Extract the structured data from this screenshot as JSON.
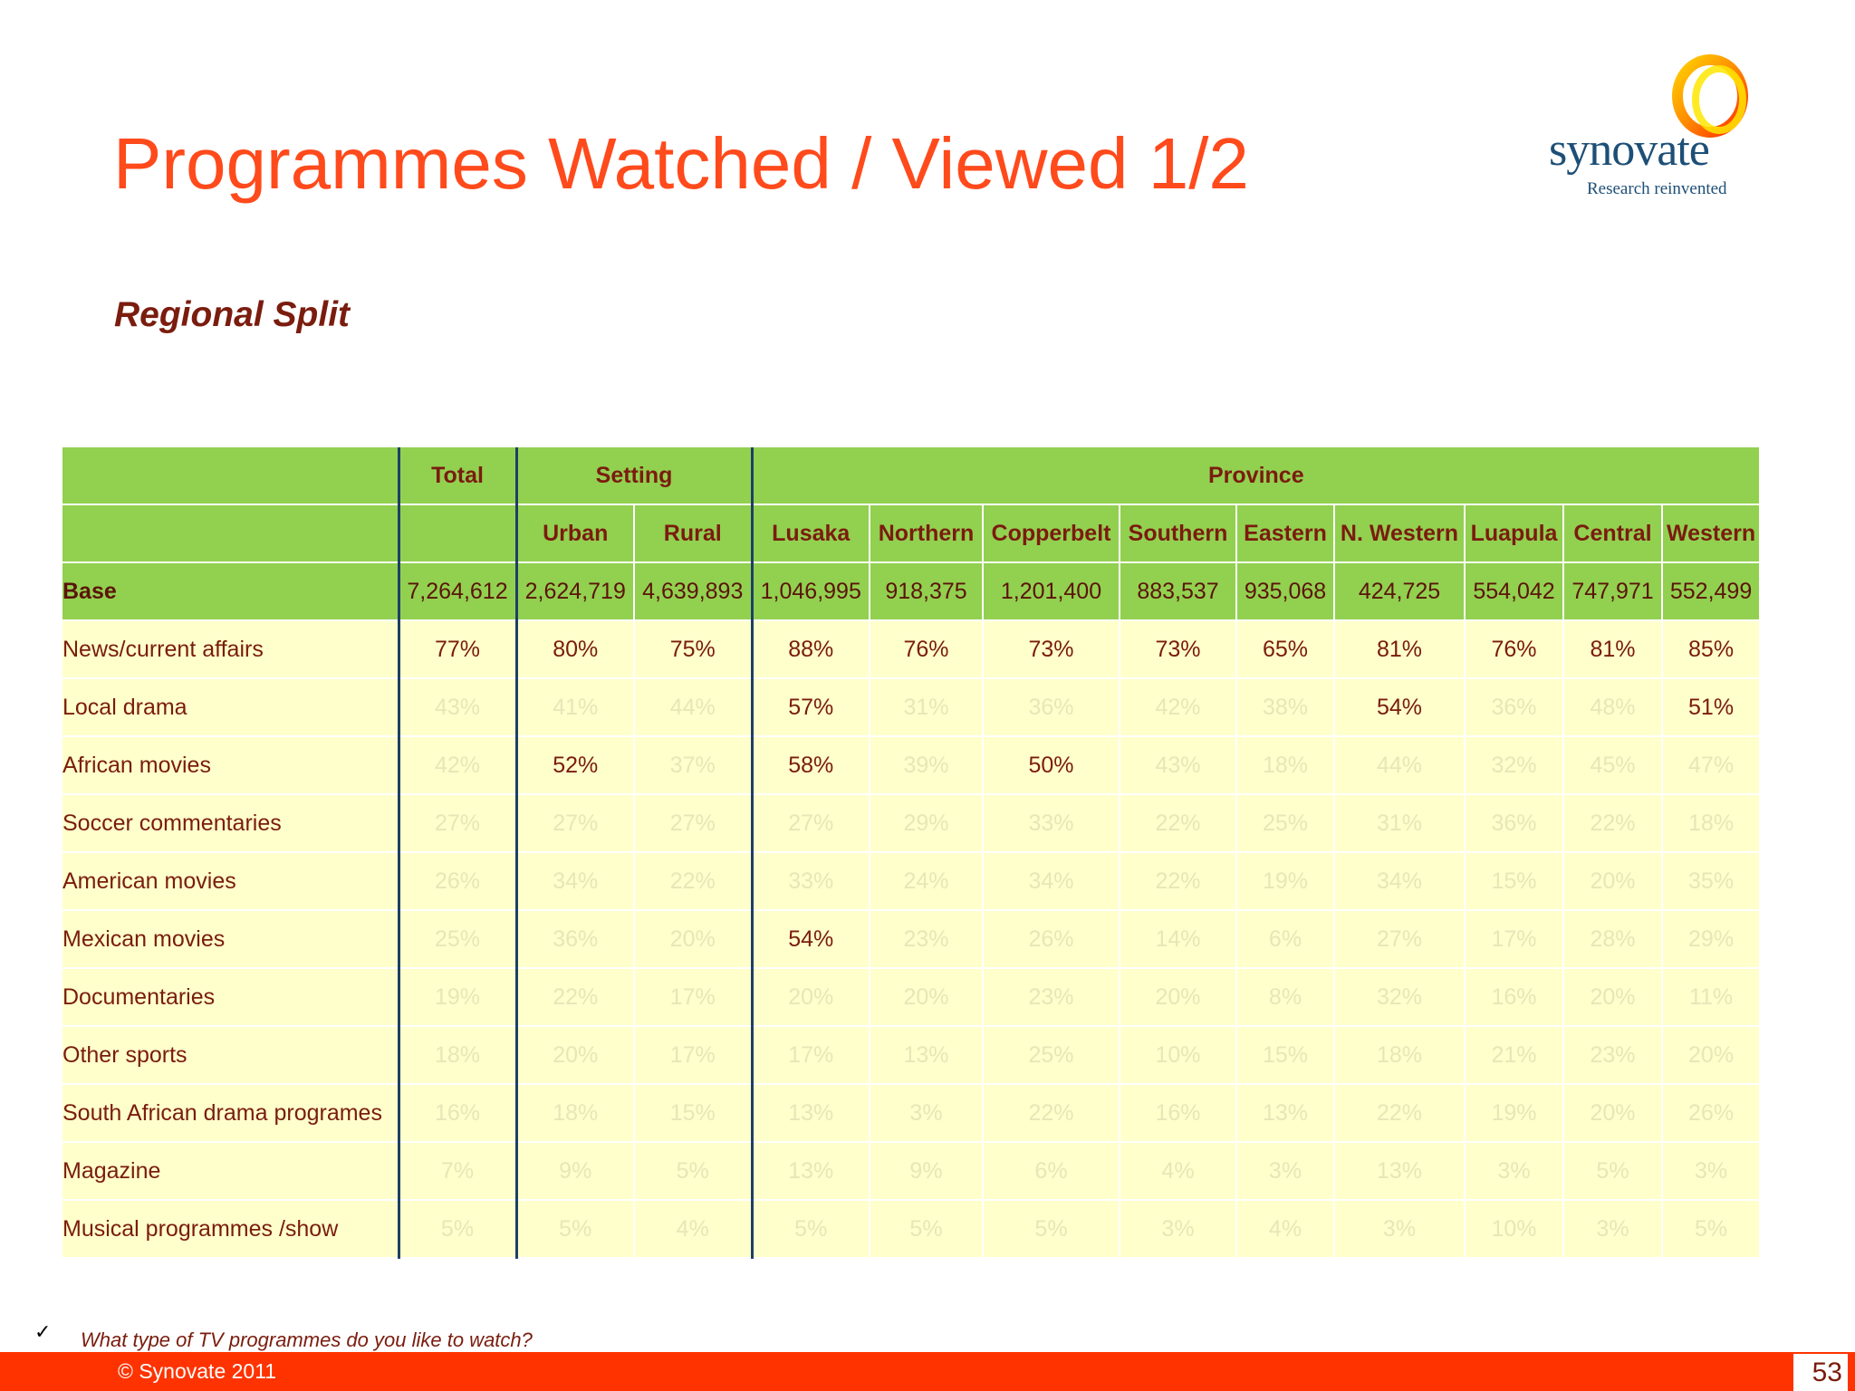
{
  "slide": {
    "title": "Programmes Watched / Viewed 1/2",
    "subtitle": "Regional Split",
    "footnote_mark": "✓",
    "footnote": "What type of TV programmes do you like to watch?",
    "copyright": "© Synovate 2011",
    "page_number": "53",
    "accent_color": "#ff3300"
  },
  "logo": {
    "word": "synovate",
    "tagline": "Research reinvented"
  },
  "table": {
    "group_headers": {
      "total": "Total",
      "setting": "Setting",
      "province": "Province"
    },
    "columns": [
      "Urban",
      "Rural",
      "Lusaka",
      "Northern",
      "Copperbelt",
      "Southern",
      "Eastern",
      "N. Western",
      "Luapula",
      "Central",
      "Western"
    ],
    "base": {
      "label": "Base",
      "values": [
        "7,264,612",
        "2,624,719",
        "4,639,893",
        "1,046,995",
        "918,375",
        "1,201,400",
        "883,537",
        "935,068",
        "424,725",
        "554,042",
        "747,971",
        "552,499"
      ]
    },
    "rows": [
      {
        "label": "News/current affairs",
        "values": [
          "77%",
          "80%",
          "75%",
          "88%",
          "76%",
          "73%",
          "73%",
          "65%",
          "81%",
          "76%",
          "81%",
          "85%"
        ],
        "highlight": [
          1,
          1,
          1,
          1,
          1,
          1,
          1,
          1,
          1,
          1,
          1,
          1
        ]
      },
      {
        "label": "Local drama",
        "values": [
          "43%",
          "41%",
          "44%",
          "57%",
          "31%",
          "36%",
          "42%",
          "38%",
          "54%",
          "36%",
          "48%",
          "51%"
        ],
        "highlight": [
          0,
          0,
          0,
          1,
          0,
          0,
          0,
          0,
          1,
          0,
          0,
          1
        ]
      },
      {
        "label": "African movies",
        "values": [
          "42%",
          "52%",
          "37%",
          "58%",
          "39%",
          "50%",
          "43%",
          "18%",
          "44%",
          "32%",
          "45%",
          "47%"
        ],
        "highlight": [
          0,
          1,
          0,
          1,
          0,
          1,
          0,
          0,
          0,
          0,
          0,
          0
        ]
      },
      {
        "label": "Soccer commentaries",
        "values": [
          "27%",
          "27%",
          "27%",
          "27%",
          "29%",
          "33%",
          "22%",
          "25%",
          "31%",
          "36%",
          "22%",
          "18%"
        ],
        "highlight": [
          0,
          0,
          0,
          0,
          0,
          0,
          0,
          0,
          0,
          0,
          0,
          0
        ]
      },
      {
        "label": "American movies",
        "values": [
          "26%",
          "34%",
          "22%",
          "33%",
          "24%",
          "34%",
          "22%",
          "19%",
          "34%",
          "15%",
          "20%",
          "35%"
        ],
        "highlight": [
          0,
          0,
          0,
          0,
          0,
          0,
          0,
          0,
          0,
          0,
          0,
          0
        ]
      },
      {
        "label": "Mexican movies",
        "values": [
          "25%",
          "36%",
          "20%",
          "54%",
          "23%",
          "26%",
          "14%",
          "6%",
          "27%",
          "17%",
          "28%",
          "29%"
        ],
        "highlight": [
          0,
          0,
          0,
          1,
          0,
          0,
          0,
          0,
          0,
          0,
          0,
          0
        ]
      },
      {
        "label": "Documentaries",
        "values": [
          "19%",
          "22%",
          "17%",
          "20%",
          "20%",
          "23%",
          "20%",
          "8%",
          "32%",
          "16%",
          "20%",
          "11%"
        ],
        "highlight": [
          0,
          0,
          0,
          0,
          0,
          0,
          0,
          0,
          0,
          0,
          0,
          0
        ]
      },
      {
        "label": "Other sports",
        "values": [
          "18%",
          "20%",
          "17%",
          "17%",
          "13%",
          "25%",
          "10%",
          "15%",
          "18%",
          "21%",
          "23%",
          "20%"
        ],
        "highlight": [
          0,
          0,
          0,
          0,
          0,
          0,
          0,
          0,
          0,
          0,
          0,
          0
        ]
      },
      {
        "label": "South African drama programes",
        "values": [
          "16%",
          "18%",
          "15%",
          "13%",
          "3%",
          "22%",
          "16%",
          "13%",
          "22%",
          "19%",
          "20%",
          "26%"
        ],
        "highlight": [
          0,
          0,
          0,
          0,
          0,
          0,
          0,
          0,
          0,
          0,
          0,
          0
        ]
      },
      {
        "label": "Magazine",
        "values": [
          "7%",
          "9%",
          "5%",
          "13%",
          "9%",
          "6%",
          "4%",
          "3%",
          "13%",
          "3%",
          "5%",
          "3%"
        ],
        "highlight": [
          0,
          0,
          0,
          0,
          0,
          0,
          0,
          0,
          0,
          0,
          0,
          0
        ]
      },
      {
        "label": "Musical programmes /show",
        "values": [
          "5%",
          "5%",
          "4%",
          "5%",
          "5%",
          "5%",
          "3%",
          "4%",
          "3%",
          "10%",
          "3%",
          "5%"
        ],
        "highlight": [
          0,
          0,
          0,
          0,
          0,
          0,
          0,
          0,
          0,
          0,
          0,
          0
        ]
      }
    ]
  }
}
